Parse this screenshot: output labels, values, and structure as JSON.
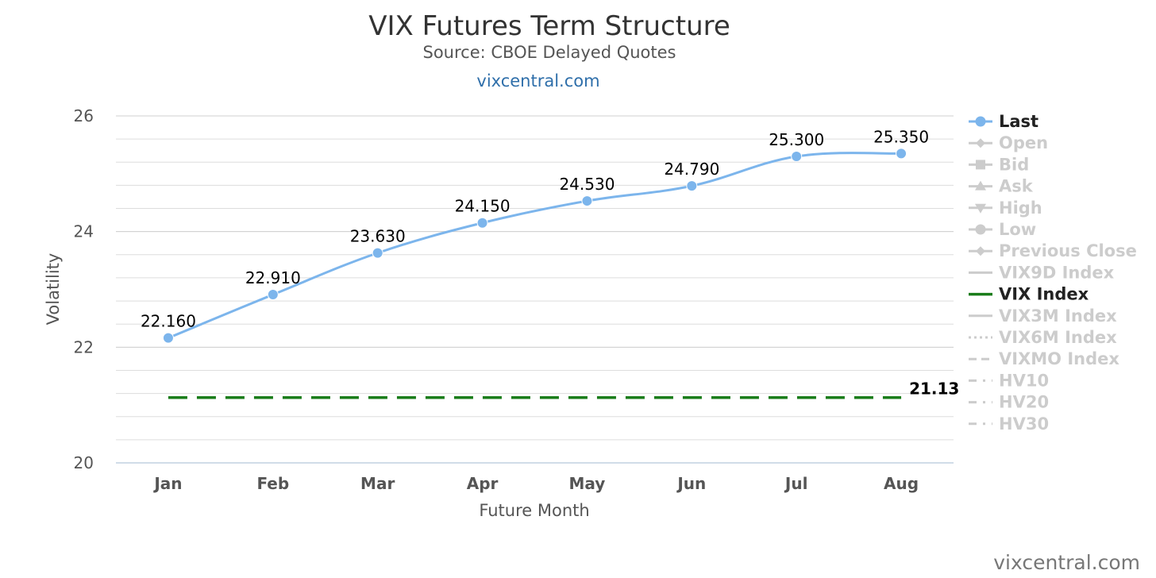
{
  "title": "VIX Futures Term Structure",
  "subtitle": "Source: CBOE Delayed Quotes",
  "site_link": "vixcentral.com",
  "watermark": "vixcentral.com",
  "colors": {
    "last": "#7cb5ec",
    "vix_index": "#1a7d1a",
    "inactive": "#cccccc",
    "grid": "#dddddd",
    "axis": "#c0d0e0"
  },
  "legend": [
    {
      "label": "Last",
      "active": true,
      "symbol": "line-circle"
    },
    {
      "label": "Open",
      "active": false,
      "symbol": "line-diamond"
    },
    {
      "label": "Bid",
      "active": false,
      "symbol": "line-square"
    },
    {
      "label": "Ask",
      "active": false,
      "symbol": "line-triangle"
    },
    {
      "label": "High",
      "active": false,
      "symbol": "line-triangle-down"
    },
    {
      "label": "Low",
      "active": false,
      "symbol": "line-circle"
    },
    {
      "label": "Previous Close",
      "active": false,
      "symbol": "line-diamond"
    },
    {
      "label": "VIX9D Index",
      "active": false,
      "symbol": "line"
    },
    {
      "label": "VIX Index",
      "active": true,
      "symbol": "line"
    },
    {
      "label": "VIX3M Index",
      "active": false,
      "symbol": "line"
    },
    {
      "label": "VIX6M Index",
      "active": false,
      "symbol": "dotted"
    },
    {
      "label": "VIXMO Index",
      "active": false,
      "symbol": "dashed"
    },
    {
      "label": "HV10",
      "active": false,
      "symbol": "dash-dot"
    },
    {
      "label": "HV20",
      "active": false,
      "symbol": "dash-dot"
    },
    {
      "label": "HV30",
      "active": false,
      "symbol": "dash-dot"
    }
  ],
  "chart_data": {
    "type": "line",
    "title": "VIX Futures Term Structure",
    "subtitle": "Source: CBOE Delayed Quotes",
    "xlabel": "Future Month",
    "ylabel": "Volatility",
    "categories": [
      "Jan",
      "Feb",
      "Mar",
      "Apr",
      "May",
      "Jun",
      "Jul",
      "Aug"
    ],
    "ylim": [
      20,
      26
    ],
    "yticks": [
      20,
      22,
      24,
      26
    ],
    "grid": true,
    "legend_position": "right",
    "series": [
      {
        "name": "Last",
        "values": [
          22.16,
          22.91,
          23.63,
          24.15,
          24.53,
          24.79,
          25.3,
          25.35
        ],
        "labels": [
          "22.160",
          "22.910",
          "23.630",
          "24.150",
          "24.530",
          "24.790",
          "25.300",
          "25.350"
        ]
      },
      {
        "name": "VIX Index",
        "values": [
          21.13,
          21.13,
          21.13,
          21.13,
          21.13,
          21.13,
          21.13,
          21.13
        ],
        "end_label": "21.13"
      }
    ]
  }
}
